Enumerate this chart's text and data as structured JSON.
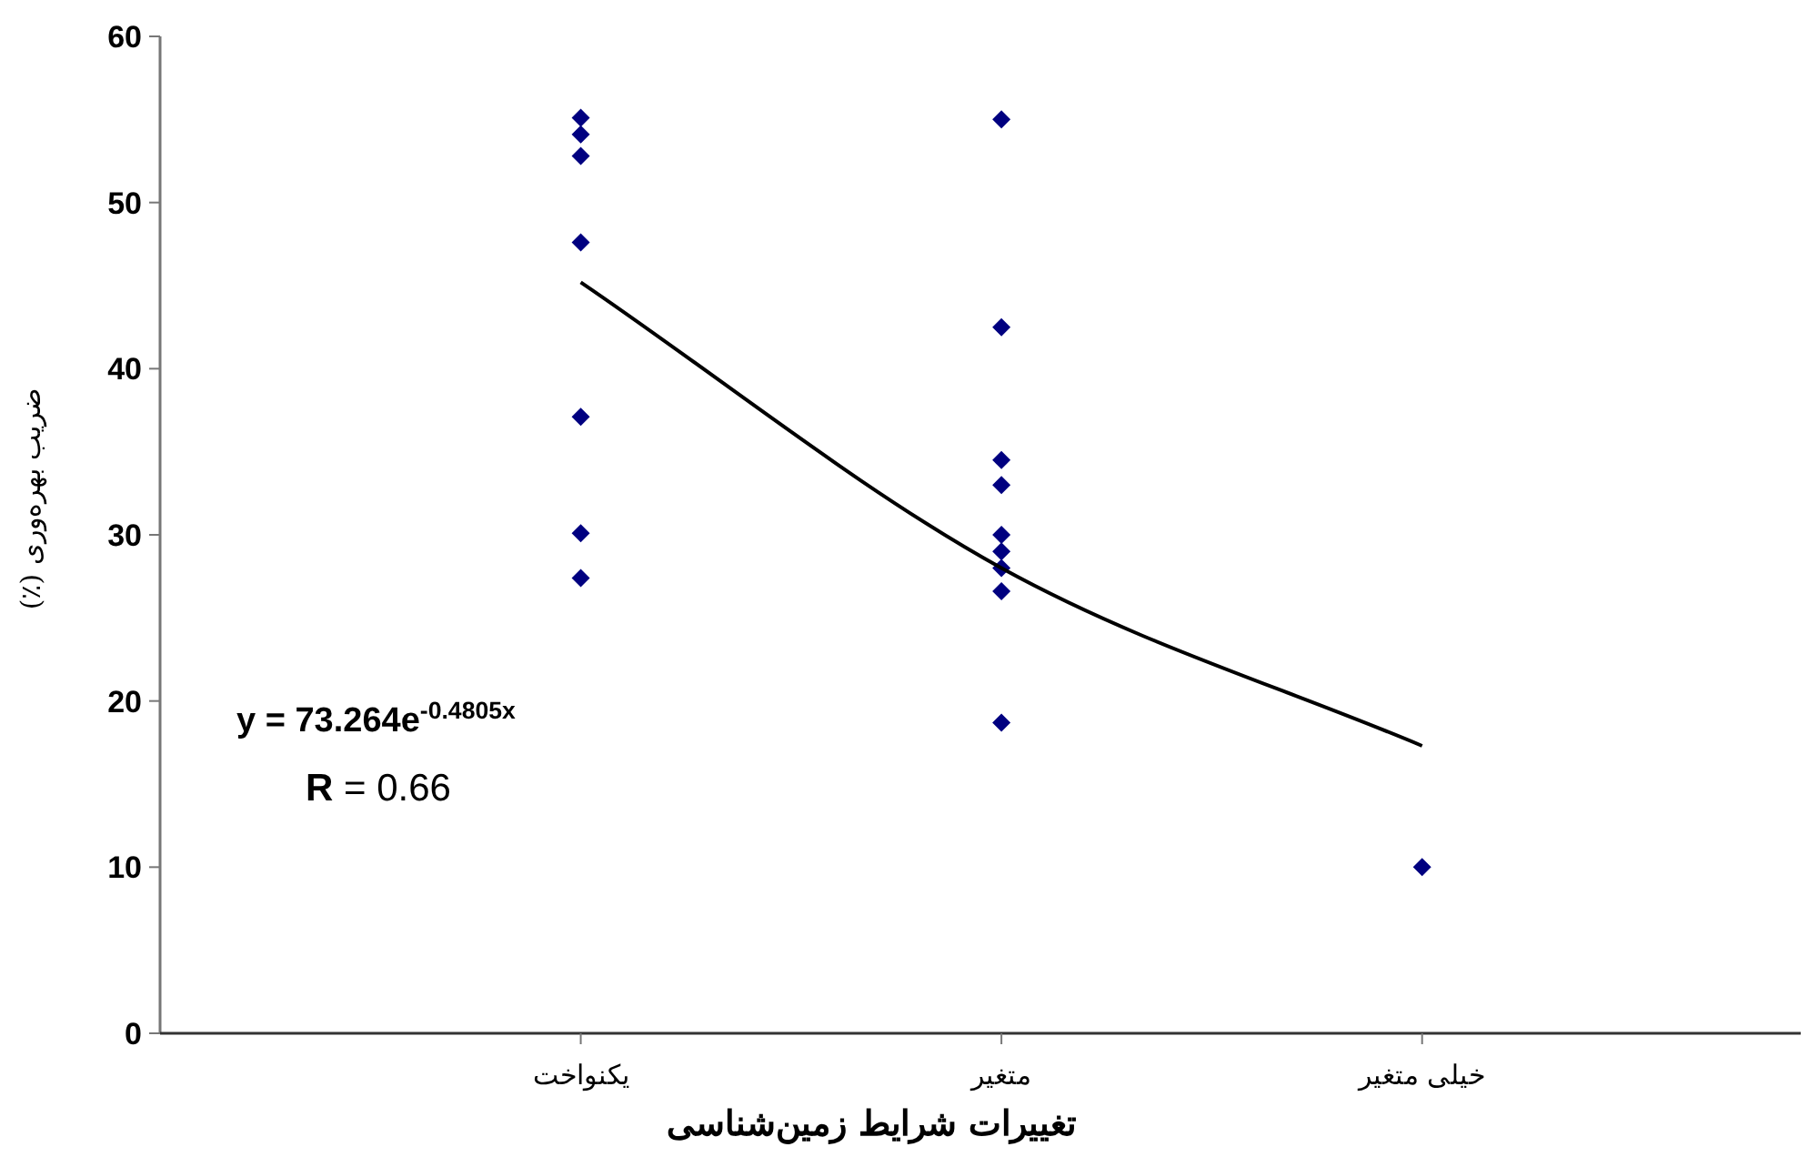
{
  "chart_data": {
    "type": "scatter",
    "xlabel": "تغییرات شرایط زمین‌شناسی",
    "ylabel": "ضریب بهره‌وری (٪)",
    "categories": [
      "یکنواخت",
      "متغیر",
      "خیلی متغیر"
    ],
    "ylim": [
      0,
      60
    ],
    "yticks": [
      0,
      10,
      20,
      30,
      40,
      50,
      60
    ],
    "series": [
      {
        "type": "scatter",
        "color": "#000080",
        "marker": "diamond",
        "x": [
          "یکنواخت",
          "یکنواخت",
          "یکنواخت",
          "یکنواخت",
          "یکنواخت",
          "یکنواخت",
          "یکنواخت",
          "متغیر",
          "متغیر",
          "متغیر",
          "متغیر",
          "متغیر",
          "متغیر",
          "متغیر",
          "متغیر",
          "متغیر",
          "خیلی متغیر"
        ],
        "values": [
          55.1,
          54.1,
          52.8,
          47.6,
          37.1,
          30.1,
          27.4,
          55,
          42.5,
          34.5,
          33,
          30,
          29,
          28,
          26.6,
          18.7,
          10
        ]
      },
      {
        "type": "line",
        "color": "#000000",
        "values": [
          45.2,
          28.0,
          17.3
        ]
      }
    ],
    "annotations": [
      "**y = 73.264e$^{-0.4805x}$**",
      "**R**  = 0.66"
    ]
  }
}
